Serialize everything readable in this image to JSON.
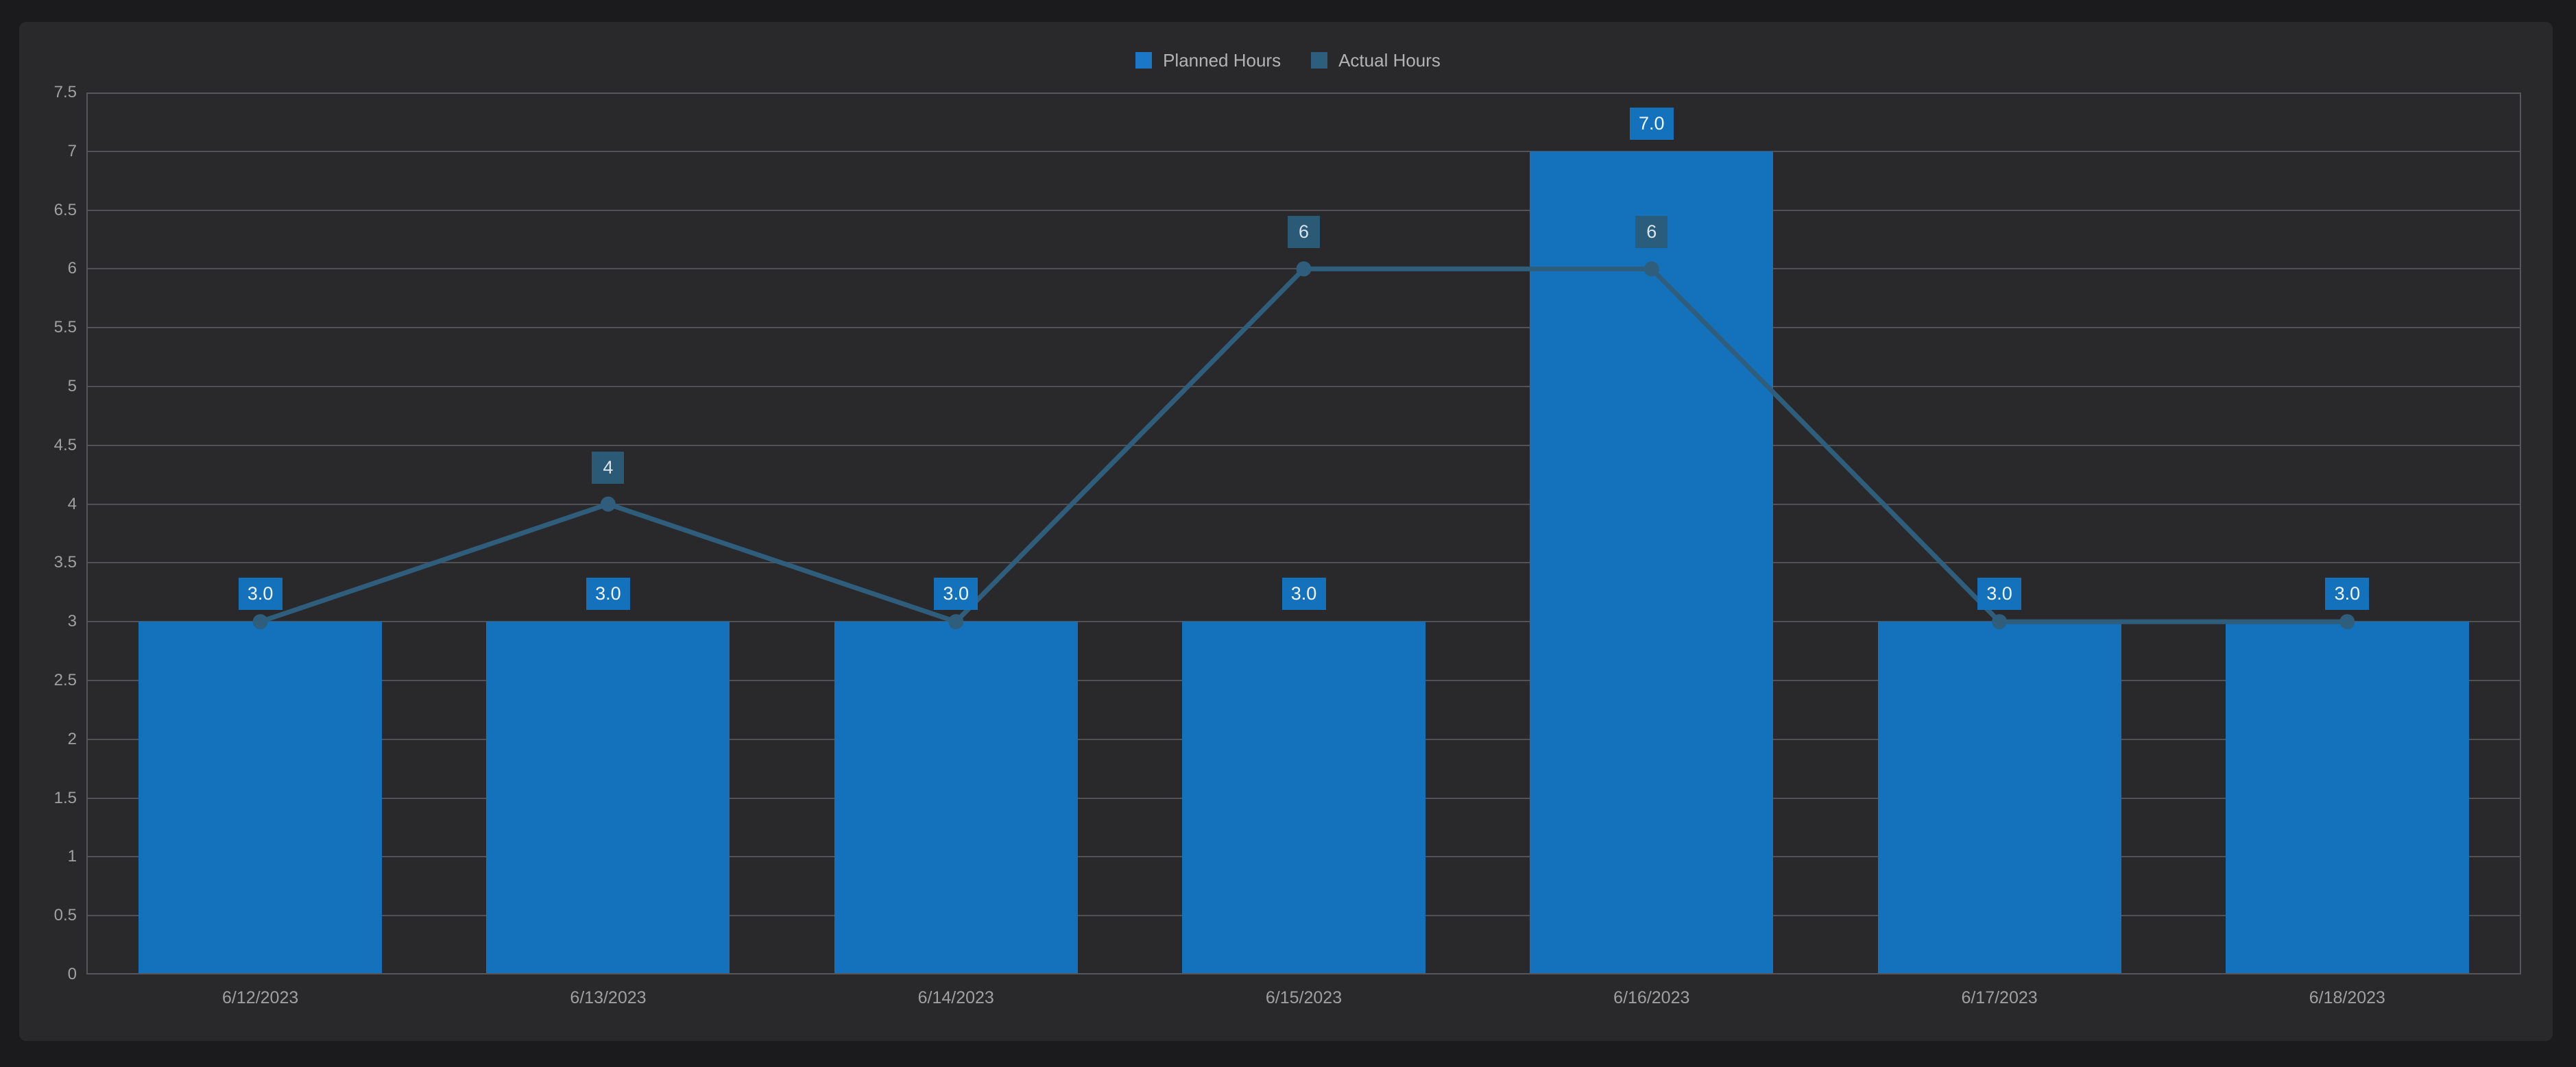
{
  "colors": {
    "page_bg": "#1b1b1d",
    "panel_bg": "#29292b",
    "grid": "#515156",
    "axis_text": "#a0a0a2",
    "legend_text": "#b3b3b5",
    "bar": "#1472bd",
    "line": "#2f5e7c",
    "bar_label_bg": "#1472bd",
    "line_label_bg": "#2b5c7a"
  },
  "legend": {
    "items": [
      {
        "label": "Planned Hours",
        "swatch_color": "#1b78c8",
        "series": "bar"
      },
      {
        "label": "Actual Hours",
        "swatch_color": "#2d5e7d",
        "series": "line"
      }
    ]
  },
  "chart_data": {
    "type": "combo",
    "title": "",
    "categories": [
      "6/12/2023",
      "6/13/2023",
      "6/14/2023",
      "6/15/2023",
      "6/16/2023",
      "6/17/2023",
      "6/18/2023"
    ],
    "series": [
      {
        "name": "Planned Hours",
        "type": "bar",
        "color": "#1472bd",
        "values": [
          3,
          3,
          3,
          3,
          7,
          3,
          3
        ],
        "data_labels": [
          "3.0",
          "3.0",
          "3.0",
          "3.0",
          "7.0",
          "3.0",
          "3.0"
        ]
      },
      {
        "name": "Actual Hours",
        "type": "line",
        "color": "#2f5e7c",
        "values": [
          3,
          4,
          3,
          6,
          6,
          3,
          3
        ],
        "data_labels": [
          null,
          "4",
          null,
          "6",
          "6",
          null,
          null
        ]
      }
    ],
    "ylim": [
      0,
      7.5
    ],
    "y_tick_labels": [
      "0",
      "0.5",
      "1",
      "1.5",
      "2",
      "2.5",
      "3",
      "3.5",
      "4",
      "4.5",
      "5",
      "5.5",
      "6",
      "6.5",
      "7",
      "7.5"
    ],
    "grid": "horizontal",
    "legend_position": "top-center"
  }
}
